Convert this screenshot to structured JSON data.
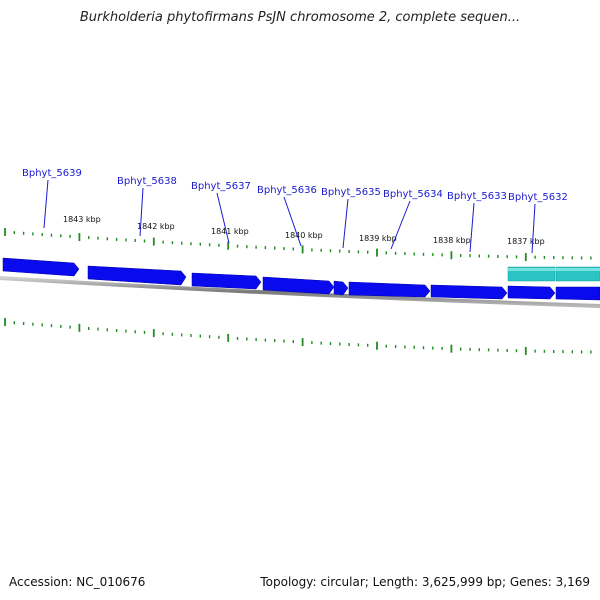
{
  "title": "Burkholderia phytofirmans PsJN chromosome 2, complete sequen...",
  "footer": {
    "accession": "Accession: NC_010676",
    "summary": "Topology: circular; Length: 3,625,999 bp; Genes: 3,169"
  },
  "colors": {
    "gene_forward": "#0a0aee",
    "gene_selected": "#2ac4c4",
    "backbone": "#8a8a8a",
    "ticks": "#228b22",
    "label": "#1a1ad0"
  },
  "scale": {
    "kbp_labels": [
      "1843 kbp",
      "1842 kbp",
      "1841 kbp",
      "1840 kbp",
      "1839 kbp",
      "1838 kbp",
      "1837 kbp"
    ]
  },
  "genes": [
    {
      "name": "Bphyt_5639"
    },
    {
      "name": "Bphyt_5638"
    },
    {
      "name": "Bphyt_5637"
    },
    {
      "name": "Bphyt_5636"
    },
    {
      "name": "Bphyt_5635"
    },
    {
      "name": "Bphyt_5634"
    },
    {
      "name": "Bphyt_5633"
    },
    {
      "name": "Bphyt_5632"
    }
  ]
}
